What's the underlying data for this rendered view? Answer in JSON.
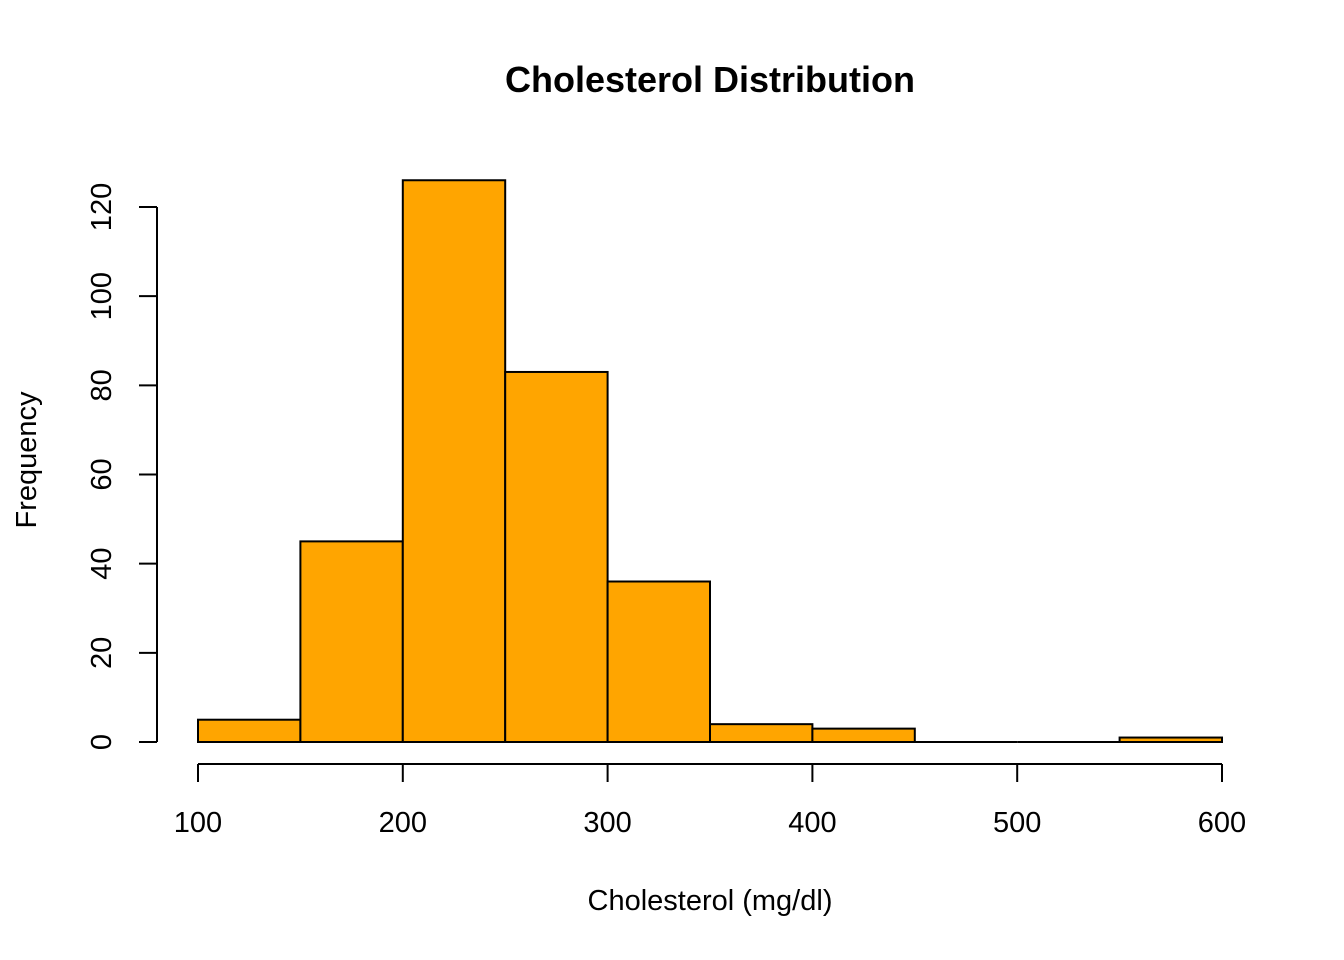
{
  "chart_data": {
    "type": "bar",
    "subtype": "histogram",
    "title": "Cholesterol Distribution",
    "xlabel": "Cholesterol (mg/dl)",
    "ylabel": "Frequency",
    "bar_color": "#FFA500",
    "border_color": "#000000",
    "bin_edges": [
      100,
      150,
      200,
      250,
      300,
      350,
      400,
      450,
      500,
      550,
      600
    ],
    "values": [
      5,
      45,
      126,
      83,
      36,
      4,
      3,
      0,
      0,
      1
    ],
    "xlim": [
      100,
      600
    ],
    "ylim": [
      0,
      126
    ],
    "x_ticks": [
      100,
      200,
      300,
      400,
      500,
      600
    ],
    "y_ticks": [
      0,
      20,
      40,
      60,
      80,
      100,
      120
    ],
    "grid": false,
    "legend": "none"
  }
}
